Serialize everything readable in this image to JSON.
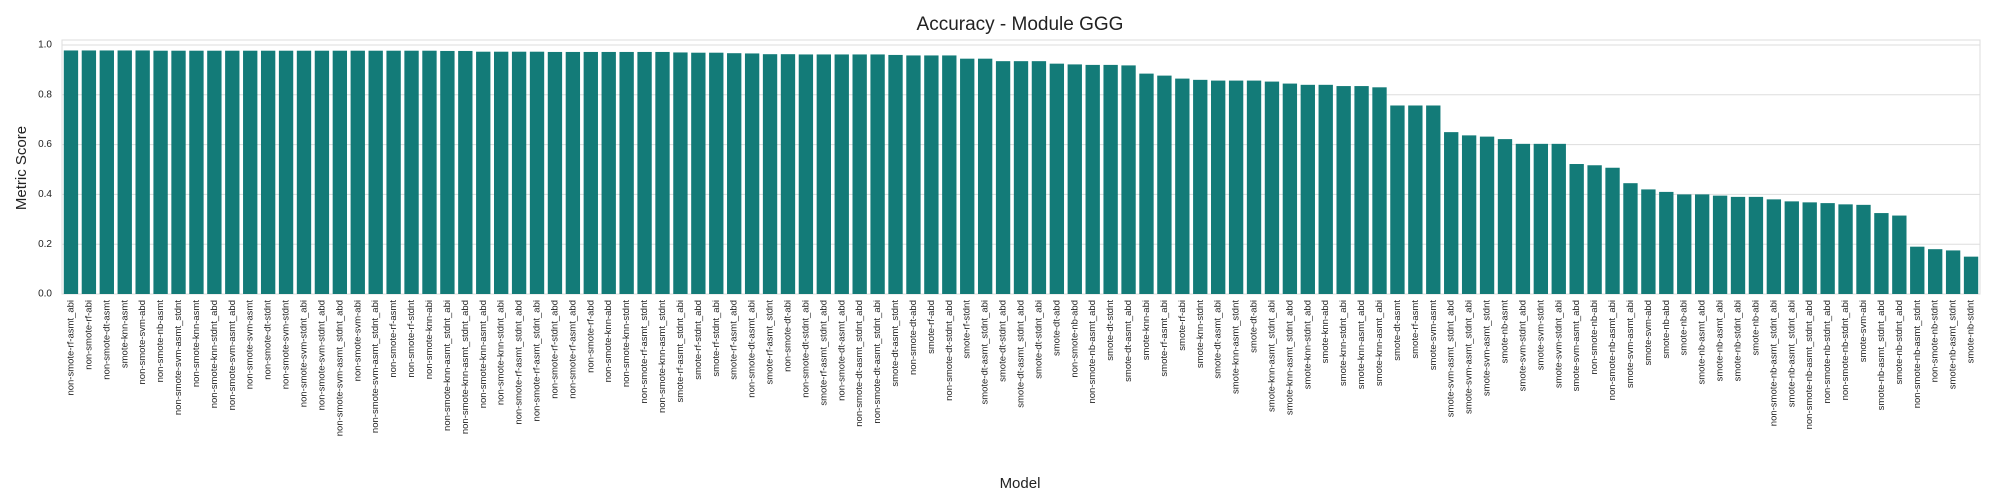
{
  "chart_data": {
    "type": "bar",
    "title": "Accuracy - Module GGG",
    "xlabel": "Model",
    "ylabel": "Metric Score",
    "color": "#137b78",
    "grid": true,
    "categories": [
      "non-smote-rf-asmt_abi",
      "non-smote-rf-abi",
      "non-smote-dt-asmt",
      "smote-knn-asmt",
      "non-smote-svm-abd",
      "non-smote-nb-asmt",
      "non-smote-svm-asmt_stdnt",
      "non-smote-knn-asmt",
      "non-smote-knn-stdnt_abd",
      "non-smote-svm-asmt_abd",
      "non-smote-svm-asmt",
      "non-smote-dt-stdnt",
      "non-smote-svm-stdnt",
      "non-smote-svm-stdnt_abi",
      "non-smote-svm-stdnt_abd",
      "non-smote-svm-asmt_stdnt_abd",
      "non-smote-svm-abi",
      "non-smote-svm-asmt_stdnt_abi",
      "non-smote-rf-asmt",
      "non-smote-rf-stdnt",
      "non-smote-knn-abi",
      "non-smote-knn-asmt_stdnt_abi",
      "non-smote-knn-asmt_stdnt_abd",
      "non-smote-knn-asmt_abd",
      "non-smote-knn-stdnt_abi",
      "non-smote-rf-asmt_stdnt_abd",
      "non-smote-rf-asmt_stdnt_abi",
      "non-smote-rf-stdnt_abd",
      "non-smote-rf-asmt_abd",
      "non-smote-rf-abd",
      "non-smote-knn-abd",
      "non-smote-knn-stdnt",
      "non-smote-rf-asmt_stdnt",
      "non-smote-knn-asmt_stdnt",
      "smote-rf-asmt_stdnt_abi",
      "smote-rf-stdnt_abd",
      "smote-rf-stdnt_abi",
      "smote-rf-asmt_abd",
      "non-smote-dt-asmt_abi",
      "smote-rf-asmt_stdnt",
      "non-smote-dt-abi",
      "non-smote-dt-stdnt_abi",
      "smote-rf-asmt_stdnt_abd",
      "non-smote-dt-asmt_abd",
      "non-smote-dt-asmt_stdnt_abd",
      "non-smote-dt-asmt_stdnt_abi",
      "smote-dt-asmt_stdnt",
      "non-smote-dt-abd",
      "smote-rf-abd",
      "non-smote-dt-stdnt_abd",
      "smote-rf-stdnt",
      "smote-dt-asmt_stdnt_abi",
      "smote-dt-stdnt_abd",
      "smote-dt-asmt_stdnt_abd",
      "smote-dt-stdnt_abi",
      "smote-dt-abd",
      "non-smote-nb-abd",
      "non-smote-nb-asmt_abd",
      "smote-dt-stdnt",
      "smote-dt-asmt_abd",
      "smote-knn-abi",
      "smote-rf-asmt_abi",
      "smote-rf-abi",
      "smote-knn-stdnt",
      "smote-dt-asmt_abi",
      "smote-knn-asmt_stdnt",
      "smote-dt-abi",
      "smote-knn-asmt_stdnt_abi",
      "smote-knn-asmt_stdnt_abd",
      "smote-knn-stdnt_abd",
      "smote-knn-abd",
      "smote-knn-stdnt_abi",
      "smote-knn-asmt_abd",
      "smote-knn-asmt_abi",
      "smote-dt-asmt",
      "smote-rf-asmt",
      "smote-svm-asmt",
      "smote-svm-asmt_stdnt_abd",
      "smote-svm-asmt_stdnt_abi",
      "smote-svm-asmt_stdnt",
      "smote-nb-asmt",
      "smote-svm-stdnt_abd",
      "smote-svm-stdnt",
      "smote-svm-stdnt_abi",
      "smote-svm-asmt_abd",
      "non-smote-nb-abi",
      "non-smote-nb-asmt_abi",
      "smote-svm-asmt_abi",
      "smote-svm-abd",
      "smote-nb-abd",
      "smote-nb-abi",
      "smote-nb-asmt_abd",
      "smote-nb-asmt_abi",
      "smote-nb-stdnt_abi",
      "smote-nb-abi",
      "non-smote-nb-asmt_stdnt_abi",
      "smote-nb-asmt_stdnt_abi",
      "non-smote-nb-asmt_stdnt_abd",
      "non-smote-nb-stdnt_abd",
      "non-smote-nb-stdnt_abi",
      "smote-svm-abi",
      "smote-nb-asmt_stdnt_abd",
      "smote-nb-stdnt_abd",
      "non-smote-nb-asmt_stdnt",
      "non-smote-nb-stdnt",
      "smote-nb-asmt_stdnt",
      "smote-nb-stdnt"
    ],
    "values": [
      0.978,
      0.978,
      0.978,
      0.978,
      0.978,
      0.977,
      0.977,
      0.977,
      0.977,
      0.977,
      0.977,
      0.977,
      0.977,
      0.977,
      0.977,
      0.977,
      0.977,
      0.977,
      0.977,
      0.977,
      0.977,
      0.976,
      0.976,
      0.973,
      0.973,
      0.973,
      0.973,
      0.972,
      0.972,
      0.972,
      0.972,
      0.972,
      0.972,
      0.972,
      0.97,
      0.969,
      0.969,
      0.967,
      0.966,
      0.963,
      0.963,
      0.962,
      0.962,
      0.962,
      0.962,
      0.962,
      0.96,
      0.958,
      0.958,
      0.958,
      0.945,
      0.945,
      0.935,
      0.935,
      0.935,
      0.925,
      0.922,
      0.92,
      0.92,
      0.918,
      0.885,
      0.877,
      0.865,
      0.86,
      0.857,
      0.857,
      0.857,
      0.853,
      0.845,
      0.84,
      0.84,
      0.835,
      0.835,
      0.83,
      0.757,
      0.757,
      0.757,
      0.65,
      0.637,
      0.632,
      0.622,
      0.603,
      0.603,
      0.603,
      0.522,
      0.517,
      0.507,
      0.445,
      0.42,
      0.41,
      0.4,
      0.4,
      0.395,
      0.39,
      0.39,
      0.38,
      0.372,
      0.368,
      0.365,
      0.36,
      0.358,
      0.325,
      0.315,
      0.19,
      0.18,
      0.175,
      0.15
    ],
    "ylim": [
      0,
      1.02
    ],
    "yticks": [
      {
        "value": 0,
        "label": "0.0"
      },
      0.2,
      0.4,
      0.6,
      0.8,
      {
        "value": 1,
        "label": "1.0"
      }
    ]
  }
}
